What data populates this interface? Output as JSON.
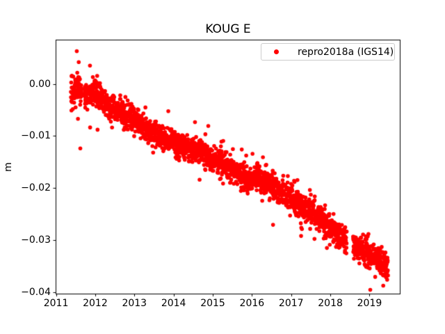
{
  "chart_data": {
    "type": "scatter",
    "title": "KOUG E",
    "xlabel": "",
    "ylabel": "m",
    "grid": false,
    "background": "#ffffff",
    "axis_color": "#000000",
    "xlim": [
      2010.99,
      2019.79
    ],
    "ylim": [
      -0.0404,
      0.00845
    ],
    "x_ticks": [
      2011,
      2012,
      2013,
      2014,
      2015,
      2016,
      2017,
      2018,
      2019
    ],
    "x_tick_labels": [
      "2011",
      "2012",
      "2013",
      "2014",
      "2015",
      "2016",
      "2017",
      "2018",
      "2019"
    ],
    "y_ticks": [
      0.0,
      -0.01,
      -0.02,
      -0.03,
      -0.04
    ],
    "y_tick_labels": [
      "0.00",
      "−0.01",
      "−0.02",
      "−0.03",
      "−0.04"
    ],
    "legend": {
      "position": "upper right",
      "entries": [
        {
          "label": "repro2018a (IGS14)",
          "color": "#ff0000",
          "marker": "circle"
        }
      ]
    },
    "series": [
      {
        "name": "repro2018a (IGS14)",
        "color": "#ff0000",
        "marker": "point",
        "marker_radius_px": 2.8,
        "x_start": 2011.38,
        "x_end": 2019.47,
        "n_points": 2400,
        "seed": 42,
        "noise_sd": 0.0012,
        "flier_fraction": 0.06,
        "flier_sd_multiplier": 2.2,
        "gaps": [
          [
            2011.66,
            2011.72
          ],
          [
            2018.42,
            2018.58
          ]
        ],
        "trend_anchors": [
          [
            2011.38,
            -0.0012
          ],
          [
            2011.55,
            -0.0008
          ],
          [
            2011.75,
            -0.0025
          ],
          [
            2011.95,
            -0.001
          ],
          [
            2012.15,
            -0.0028
          ],
          [
            2012.4,
            -0.0048
          ],
          [
            2012.7,
            -0.0056
          ],
          [
            2013.0,
            -0.0068
          ],
          [
            2013.25,
            -0.0082
          ],
          [
            2013.55,
            -0.0098
          ],
          [
            2013.85,
            -0.0108
          ],
          [
            2014.15,
            -0.0118
          ],
          [
            2014.45,
            -0.0128
          ],
          [
            2014.75,
            -0.0132
          ],
          [
            2015.05,
            -0.015
          ],
          [
            2015.35,
            -0.0158
          ],
          [
            2015.65,
            -0.0172
          ],
          [
            2015.9,
            -0.0183
          ],
          [
            2016.15,
            -0.0176
          ],
          [
            2016.5,
            -0.0195
          ],
          [
            2016.8,
            -0.021
          ],
          [
            2017.1,
            -0.0223
          ],
          [
            2017.4,
            -0.0242
          ],
          [
            2017.7,
            -0.0255
          ],
          [
            2018.0,
            -0.0278
          ],
          [
            2018.3,
            -0.0295
          ],
          [
            2018.6,
            -0.0315
          ],
          [
            2018.9,
            -0.0322
          ],
          [
            2019.15,
            -0.0333
          ],
          [
            2019.47,
            -0.035
          ]
        ],
        "outliers": [
          [
            2011.53,
            0.0063
          ],
          [
            2011.58,
            0.0042
          ],
          [
            2011.5,
            -0.0045
          ],
          [
            2011.56,
            -0.0067
          ],
          [
            2011.62,
            -0.0124
          ],
          [
            2012.06,
            -0.0088
          ],
          [
            2019.35,
            -0.0388
          ],
          [
            2019.42,
            -0.0372
          ]
        ]
      }
    ]
  }
}
